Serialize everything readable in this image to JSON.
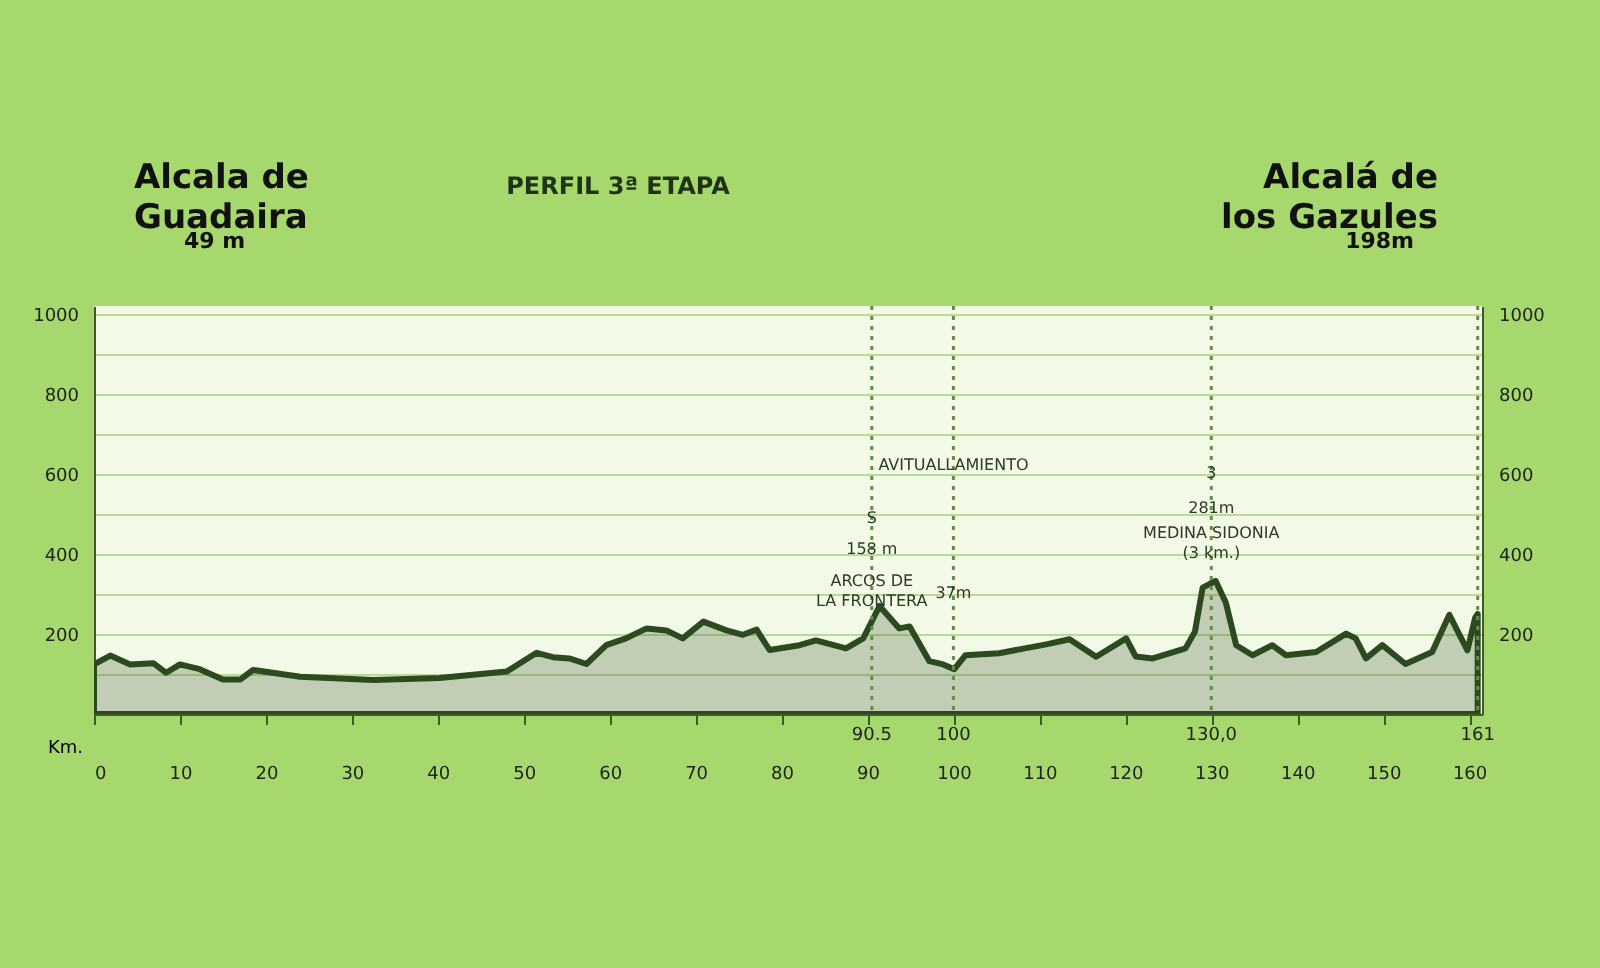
{
  "chart_data": {
    "type": "area",
    "title": "PERFIL 3ª ETAPA",
    "xlabel": "Km.",
    "x": [
      0,
      1.9,
      4.2,
      6.9,
      8.4,
      10,
      12.3,
      15,
      17,
      18.5,
      24,
      32.5,
      40.2,
      48,
      51.5,
      53.4,
      55.3,
      57.3,
      59.6,
      61.9,
      64.3,
      66.6,
      68.5,
      70.9,
      73.6,
      75.5,
      77.1,
      78.6,
      82.1,
      84,
      87.5,
      89.5,
      91.4,
      93.7,
      94.9,
      97.2,
      98.8,
      100.1,
      101.4,
      105.3,
      110.8,
      113.5,
      116.6,
      120.1,
      121.2,
      123.2,
      127,
      128.1,
      129,
      130.5,
      131.7,
      132.9,
      134.8,
      137.1,
      138.7,
      142.2,
      145.7,
      146.8,
      148,
      149.9,
      152.6,
      155.7,
      157.7,
      159.8,
      160.7,
      161
    ],
    "series": [
      {
        "color": "#2b4a1f",
        "values": [
          124,
          146,
          124,
          127,
          103,
          124,
          112,
          86,
          86,
          110,
          93,
          85,
          90,
          106,
          153,
          142,
          139,
          125,
          172,
          189,
          214,
          209,
          189,
          231,
          209,
          198,
          211,
          160,
          172,
          184,
          164,
          189,
          270,
          214,
          219,
          132,
          124,
          112,
          147,
          152,
          174,
          187,
          143,
          189,
          144,
          139,
          164,
          206,
          316,
          333,
          278,
          172,
          147,
          172,
          147,
          155,
          201,
          189,
          139,
          172,
          125,
          155,
          248,
          159,
          240,
          250
        ]
      }
    ],
    "xlim": [
      0,
      161.5
    ],
    "xticks": [
      0,
      10,
      20,
      30,
      40,
      50,
      60,
      70,
      80,
      90,
      100,
      110,
      120,
      130,
      140,
      150,
      160
    ],
    "ylim": [
      0,
      1020
    ],
    "yticks": [
      {
        "value": 0,
        "label": null
      },
      {
        "value": 100,
        "label": null
      },
      200,
      {
        "value": 300,
        "label": null
      },
      400,
      {
        "value": 500,
        "label": null
      },
      600,
      {
        "value": 700,
        "label": null
      },
      800,
      {
        "value": 900,
        "label": null
      },
      1000
    ],
    "y2lim": [
      0,
      1020
    ],
    "y2ticks": [
      200,
      400,
      600,
      800,
      1000
    ],
    "grid": "y",
    "ref_lines": [
      {
        "axis": "x",
        "value": 90.5,
        "label": "90.5",
        "line_style": "dotted",
        "color": "#6a8a4a"
      },
      {
        "axis": "x",
        "value": 100,
        "label": "100",
        "line_style": "dotted",
        "color": "#6a8a4a"
      },
      {
        "axis": "x",
        "value": 130,
        "label": "130,0",
        "line_style": "dotted",
        "color": "#6a8a4a"
      },
      {
        "axis": "x",
        "value": 161,
        "label": "161",
        "line_style": "dotted",
        "color": "#6a8a4a"
      }
    ],
    "annotations": [
      "Alcala de Guadaira",
      "49 m",
      "Alcalá de los Gazules",
      "198m",
      {
        "text": "S",
        "x": 90.5,
        "y": 487
      },
      {
        "text": "158 m",
        "x": 90.5,
        "y": 411
      },
      {
        "text": "ARCOS DE LA FRONTERA",
        "x": 90.5,
        "y": 330
      },
      {
        "text": "AVITUALLAMIENTO",
        "x": 100,
        "y": 620
      },
      {
        "text": "37m",
        "x": 100,
        "y": 300
      },
      {
        "text": "3",
        "x": 130,
        "y": 600
      },
      {
        "text": "281m",
        "x": 130,
        "y": 512
      },
      {
        "text": "MEDINA SIDONIA (3 km.)",
        "x": 130,
        "y": 450
      }
    ]
  }
}
